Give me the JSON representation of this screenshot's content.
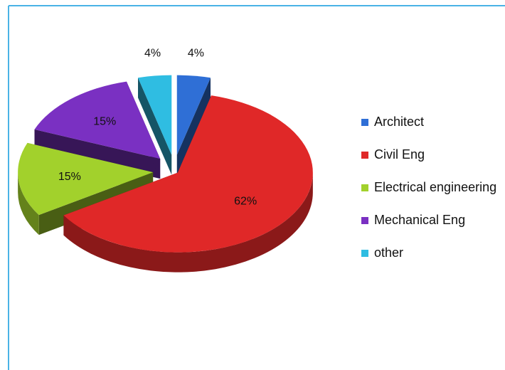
{
  "chart_data": {
    "type": "pie",
    "categories": [
      "Architect",
      "Civil Eng",
      "Electrical engineering",
      "Mechanical Eng",
      "other"
    ],
    "values": [
      4,
      62,
      15,
      15,
      4
    ],
    "value_labels": [
      "4%",
      "62%",
      "15%",
      "15%",
      "4%"
    ],
    "colors": [
      "#2f6fd6",
      "#e02828",
      "#a2d12c",
      "#7a30c2",
      "#2fbde2"
    ],
    "legend": "right"
  }
}
